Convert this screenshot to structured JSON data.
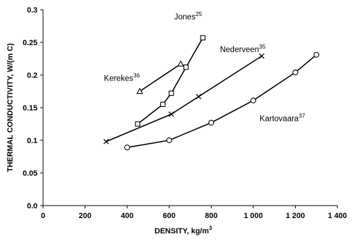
{
  "chart_data": {
    "type": "line",
    "xlabel": "DENSITY, kg/m",
    "xlabel_sup": "3",
    "ylabel": "THERMAL CONDUCTIVITY, W/(m C)",
    "xlim": [
      0,
      1400
    ],
    "ylim": [
      0.0,
      0.3
    ],
    "x_ticks": [
      {
        "value": 0,
        "label": "0"
      },
      {
        "value": 200,
        "label": "200"
      },
      {
        "value": 400,
        "label": "400"
      },
      {
        "value": 600,
        "label": "600"
      },
      {
        "value": 800,
        "label": "800"
      },
      {
        "value": 1000,
        "label": "1 000"
      },
      {
        "value": 1200,
        "label": "1 200"
      },
      {
        "value": 1400,
        "label": "1 400"
      }
    ],
    "y_ticks": [
      {
        "value": 0.0,
        "label": "0.0"
      },
      {
        "value": 0.05,
        "label": "0.05"
      },
      {
        "value": 0.1,
        "label": "0.1"
      },
      {
        "value": 0.15,
        "label": "0.15"
      },
      {
        "value": 0.2,
        "label": "0.2"
      },
      {
        "value": 0.25,
        "label": "0.25"
      },
      {
        "value": 0.3,
        "label": "0.3"
      }
    ],
    "grid": false,
    "series": [
      {
        "name": "Jones",
        "ref": "25",
        "marker": "square",
        "label_at": [
          690,
          0.285
        ],
        "x": [
          450,
          570,
          610,
          680,
          760
        ],
        "y": [
          0.125,
          0.155,
          0.172,
          0.212,
          0.257
        ]
      },
      {
        "name": "Kerekes",
        "ref": "36",
        "marker": "triangle",
        "label_at": [
          460,
          0.191
        ],
        "x": [
          460,
          655
        ],
        "y": [
          0.175,
          0.217
        ]
      },
      {
        "name": "Nederveen",
        "ref": "35",
        "marker": "x",
        "label_at": [
          950,
          0.235
        ],
        "x": [
          300,
          610,
          740,
          1040
        ],
        "y": [
          0.098,
          0.14,
          0.167,
          0.229
        ]
      },
      {
        "name": "Kartovaara",
        "ref": "37",
        "marker": "circle",
        "label_at": [
          1030,
          0.129
        ],
        "x": [
          400,
          600,
          800,
          1000,
          1200,
          1300
        ],
        "y": [
          0.089,
          0.1,
          0.127,
          0.161,
          0.204,
          0.231
        ]
      }
    ]
  }
}
